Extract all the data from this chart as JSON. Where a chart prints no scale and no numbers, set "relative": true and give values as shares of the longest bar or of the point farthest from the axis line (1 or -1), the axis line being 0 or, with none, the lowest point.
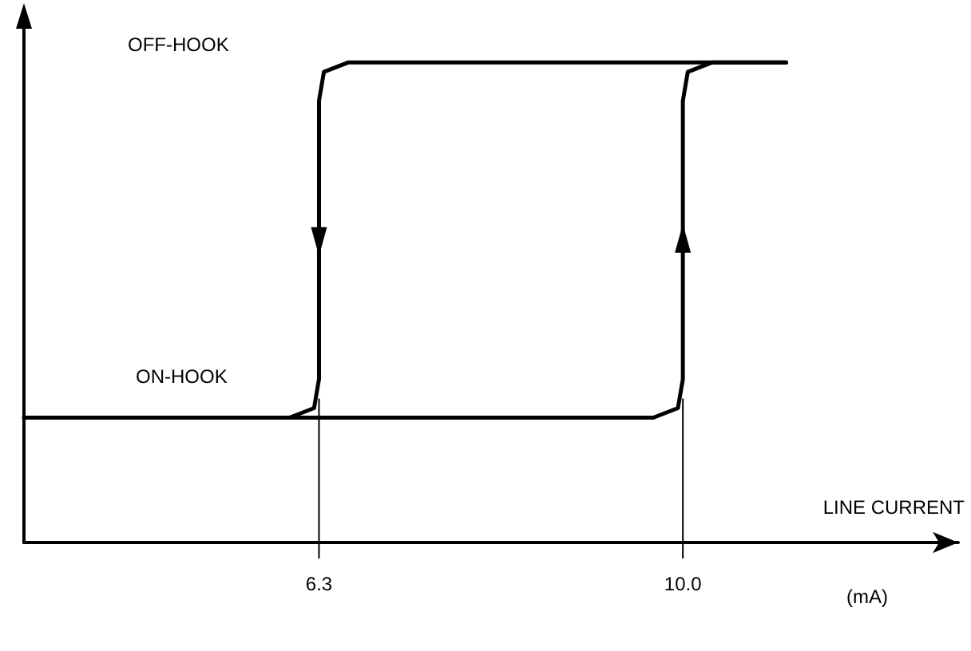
{
  "chart_data": {
    "type": "line",
    "relative": true,
    "xlabel": "LINE CURRENT",
    "xlim": [
      3.3,
      12.8
    ],
    "xticks": [
      6.3,
      {
        "value": 10,
        "label": "10.0"
      }
    ],
    "tick_labels": "x",
    "grid": false,
    "marker": "none",
    "line_style": "solid",
    "series": [
      {
        "color": "#000000",
        "x": [
          3.3,
          9.7,
          9.95,
          10.0,
          10.0,
          10.05,
          10.3,
          11.05
        ],
        "values": [
          0.26,
          0.26,
          0.28,
          0.34,
          0.92,
          0.98,
          1,
          1
        ]
      },
      {
        "color": "#000000",
        "x": [
          11.05,
          6.6,
          6.35,
          6.3,
          6.3,
          6.25,
          6.0
        ],
        "values": [
          1,
          1,
          0.98,
          0.92,
          0.34,
          0.28,
          0.26
        ]
      }
    ],
    "ref_lines": [
      {
        "axis": "x",
        "value": 6.3,
        "label": null
      },
      {
        "axis": "x",
        "value": 10,
        "label": null
      }
    ],
    "annotations": [
      "OFF-HOOK",
      "ON-HOOK",
      "(mA)"
    ]
  }
}
